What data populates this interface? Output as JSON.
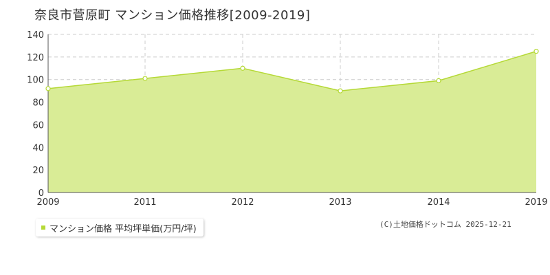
{
  "title": "奈良市菅原町 マンション価格推移[2009-2019]",
  "legend": {
    "label": "マンション価格 平均坪単価(万円/坪)"
  },
  "credit": "(C)土地価格ドットコム 2025-12-21",
  "colors": {
    "area_fill": "#d9ec96",
    "line": "#b5d936",
    "point_fill": "#ffffff",
    "grid": "#cccccc",
    "axis": "#555555",
    "swatch": "#b5d936"
  },
  "chart_data": {
    "type": "area",
    "title": "奈良市菅原町 マンション価格推移[2009-2019]",
    "x": [
      "2009",
      "2011",
      "2012",
      "2013",
      "2014",
      "2019"
    ],
    "series": [
      {
        "name": "マンション価格 平均坪単価(万円/坪)",
        "values": [
          92,
          101,
          110,
          90,
          99,
          125
        ]
      }
    ],
    "ylim": [
      0,
      140
    ],
    "yticks": [
      0,
      20,
      40,
      60,
      80,
      100,
      120,
      140
    ],
    "grid": true,
    "legend_position": "bottom-left"
  }
}
